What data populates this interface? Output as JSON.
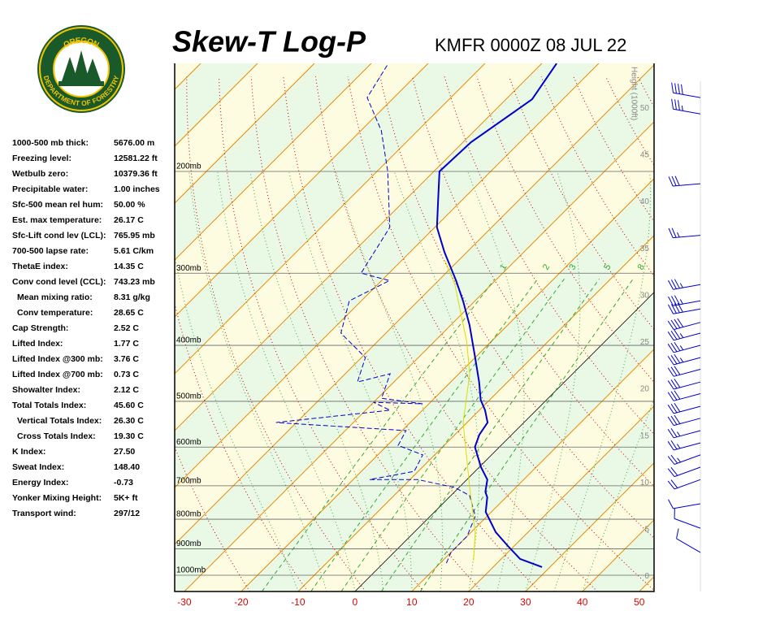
{
  "logo": {
    "top": "OREGON",
    "bottom": "DEPARTMENT OF FORESTRY"
  },
  "stats": [
    {
      "label": "1000-500 mb thick:",
      "value": "5676.00 m"
    },
    {
      "label": "Freezing level:",
      "value": "12581.22 ft"
    },
    {
      "label": "Wetbulb zero:",
      "value": "10379.36 ft"
    },
    {
      "label": "Precipitable water:",
      "value": "1.00 inches"
    },
    {
      "label": "Sfc-500 mean rel hum:",
      "value": "50.00 %"
    },
    {
      "label": "Est. max temperature:",
      "value": "26.17 C"
    },
    {
      "label": "Sfc-Lift cond lev (LCL):",
      "value": "765.95 mb"
    },
    {
      "label": "700-500 lapse rate:",
      "value": "5.61 C/km"
    },
    {
      "label": "ThetaE index:",
      "value": "14.35 C"
    },
    {
      "label": "Conv cond level (CCL):",
      "value": "743.23 mb"
    },
    {
      "label": "Mean mixing ratio:",
      "value": "8.31 g/kg",
      "indent": true
    },
    {
      "label": "Conv temperature:",
      "value": "28.65 C",
      "indent": true
    },
    {
      "label": "Cap Strength:",
      "value": "2.52 C"
    },
    {
      "label": "Lifted Index:",
      "value": "1.77 C"
    },
    {
      "label": "Lifted Index @300 mb:",
      "value": "3.76 C"
    },
    {
      "label": "Lifted Index @700 mb:",
      "value": "0.73 C"
    },
    {
      "label": "Showalter Index:",
      "value": "2.12 C"
    },
    {
      "label": "Total Totals Index:",
      "value": "45.60 C"
    },
    {
      "label": "Vertical Totals Index:",
      "value": "26.30 C",
      "indent": true
    },
    {
      "label": "Cross Totals Index:",
      "value": "19.30 C",
      "indent": true
    },
    {
      "label": "K Index:",
      "value": "27.50"
    },
    {
      "label": "Sweat Index:",
      "value": "148.40"
    },
    {
      "label": "Energy Index:",
      "value": "-0.73"
    },
    {
      "label": "Yonker Mixing Height:",
      "value": "5K+ ft"
    },
    {
      "label": "Transport wind:",
      "value": "297/12"
    }
  ],
  "chart_data": {
    "type": "skew-t",
    "title": "Skew-T Log-P",
    "subtitle": "KMFR 0000Z 08 JUL 22",
    "xlim": [
      -31.7,
      52.6
    ],
    "xticks": [
      -30,
      -20,
      -10,
      0,
      10,
      20,
      30,
      40,
      50
    ],
    "ylim": [
      1067,
      130
    ],
    "log_y": true,
    "yticks": [
      {
        "value": 200,
        "label": "200mb"
      },
      {
        "value": 300,
        "label": "300mb"
      },
      {
        "value": 400,
        "label": "400mb"
      },
      {
        "value": 500,
        "label": "500mb"
      },
      {
        "value": 600,
        "label": "600mb"
      },
      {
        "value": 700,
        "label": "700mb"
      },
      {
        "value": 800,
        "label": "800mb"
      },
      {
        "value": 900,
        "label": "900mb"
      },
      {
        "value": 1000,
        "label": "1000mb"
      }
    ],
    "y2label": "Height (1000ft)",
    "y2lim": [
      -1.6,
      54.8
    ],
    "y2ticks": [
      0,
      5,
      10,
      15,
      20,
      25,
      30,
      35,
      40,
      45,
      50
    ],
    "mixing_ratio": {
      "color": "#33aa33",
      "values": [
        1,
        2,
        3,
        5,
        8
      ]
    },
    "series": [
      {
        "color": "#0000cc",
        "style": "solid",
        "pressure": [
          968,
          937,
          890,
          842,
          777,
          733,
          717,
          683,
          650,
          600,
          571,
          544,
          518,
          497,
          463,
          420,
          369,
          335,
          309,
          276,
          250,
          220,
          200,
          178,
          150,
          130
        ],
        "values": [
          28.6,
          23.3,
          18.9,
          14.3,
          9.0,
          6.7,
          5.4,
          3.6,
          0.3,
          -4.3,
          -5.7,
          -6.4,
          -9.0,
          -11.6,
          -15.0,
          -20.0,
          -26.7,
          -32.1,
          -36.9,
          -43.9,
          -49.6,
          -55.0,
          -59.0,
          -58.6,
          -55.4,
          -57.4
        ]
      },
      {
        "color": "#0000cc",
        "style": "dashed",
        "pressure": [
          953,
          913,
          856,
          790,
          728,
          705,
          683,
          683,
          661,
          619,
          596,
          562,
          544,
          518,
          502,
          505,
          494,
          448,
          463,
          420,
          381,
          335,
          309,
          300,
          250,
          200,
          170,
          149,
          130
        ],
        "values": [
          11.1,
          10.0,
          10.0,
          7.9,
          3.3,
          -0.7,
          -8.6,
          -17.1,
          -10.7,
          -12.1,
          -18.1,
          -19.3,
          -43.6,
          -25.7,
          -30.0,
          -21.1,
          -29.3,
          -32.1,
          -36.4,
          -39.3,
          -47.9,
          -52.1,
          -48.6,
          -54.9,
          -57.9,
          -68.1,
          -76.4,
          -84.7,
          -87.0
        ]
      },
      {
        "color": "#dddd00",
        "style": "solid",
        "pressure": [
          943,
          842,
          705,
          544,
          448,
          394,
          314,
          285
        ],
        "values": [
          15.4,
          10.7,
          1.9,
          -10.7,
          -18.1,
          -24.3,
          -36.4,
          -42.4
        ]
      }
    ],
    "winds": {
      "color": "#0000cc",
      "pressure": [
        149,
        159,
        210,
        258,
        314,
        335,
        346,
        365,
        381,
        400,
        420,
        440,
        463,
        485,
        510,
        535,
        562,
        590,
        619,
        650,
        683,
        752,
        829,
        913
      ],
      "direction": [
        280,
        280,
        265,
        265,
        260,
        260,
        260,
        255,
        255,
        255,
        255,
        255,
        255,
        255,
        255,
        255,
        255,
        255,
        250,
        250,
        250,
        260,
        290,
        300
      ],
      "speed": [
        40,
        35,
        30,
        25,
        35,
        35,
        40,
        40,
        35,
        35,
        35,
        30,
        30,
        30,
        30,
        30,
        25,
        25,
        25,
        20,
        20,
        10,
        10,
        10
      ]
    }
  }
}
